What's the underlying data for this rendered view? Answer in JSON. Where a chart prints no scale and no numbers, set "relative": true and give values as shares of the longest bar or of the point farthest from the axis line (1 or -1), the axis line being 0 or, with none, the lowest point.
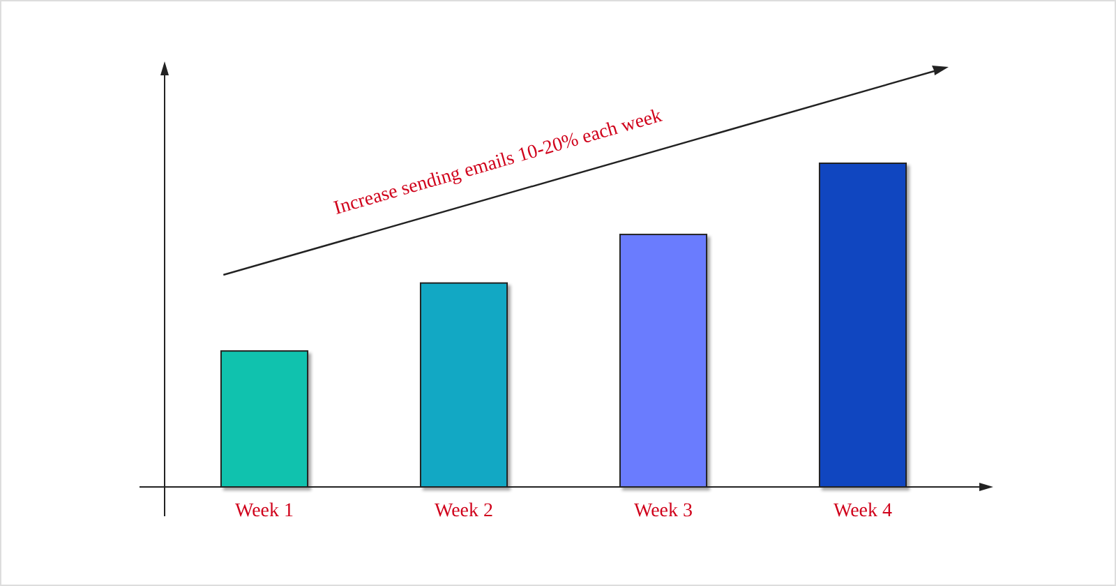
{
  "chart_data": {
    "type": "bar",
    "relative": true,
    "categories": [
      "Week 1",
      "Week 2",
      "Week 3",
      "Week 4"
    ],
    "values": [
      0.42,
      0.63,
      0.78,
      1
    ],
    "colors": [
      "#10c2ae",
      "#12a8c4",
      "#6a7cfe",
      "#1046c0"
    ],
    "annotations": [
      "Increase sending emails 10-20% each week"
    ]
  }
}
